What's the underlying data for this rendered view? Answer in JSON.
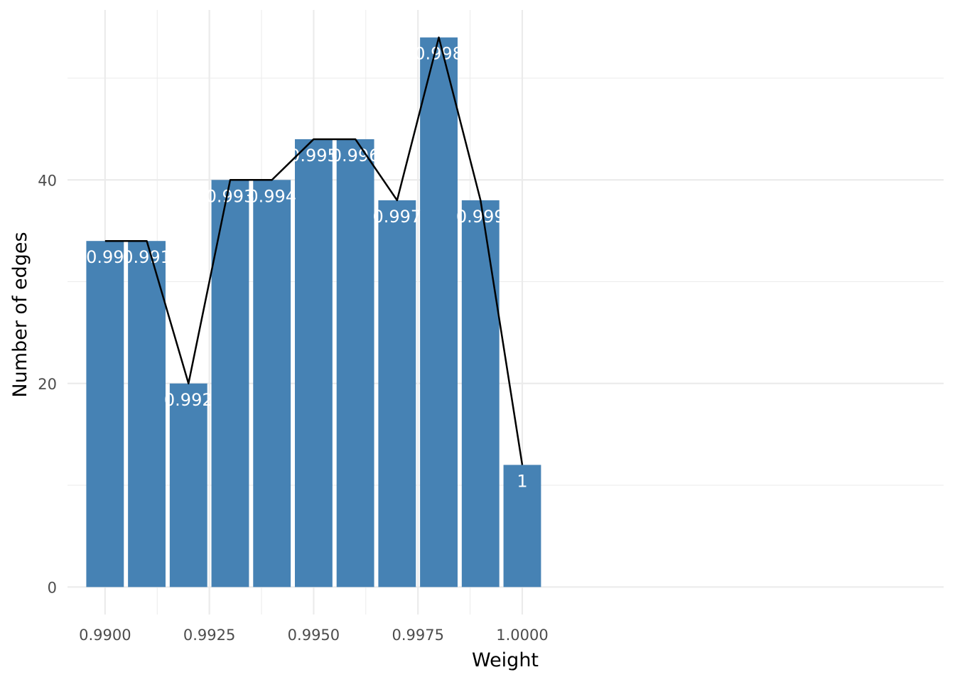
{
  "chart_data": {
    "type": "bar",
    "x": [
      0.99,
      0.991,
      0.992,
      0.993,
      0.994,
      0.995,
      0.996,
      0.997,
      0.998,
      0.999,
      1.0
    ],
    "values": [
      34,
      34,
      20,
      40,
      40,
      44,
      44,
      38,
      54,
      38,
      12
    ],
    "bar_labels": [
      "0.99",
      "0.991",
      "0.992",
      "0.993",
      "0.994",
      "0.995",
      "0.996",
      "0.997",
      "0.998",
      "0.999",
      "1"
    ],
    "line_overlay": true,
    "xlabel": "Weight",
    "ylabel": "Number of edges",
    "x_ticks": [
      0.99,
      0.9925,
      0.995,
      0.9975,
      1.0
    ],
    "x_tick_labels": [
      "0.9900",
      "0.9925",
      "0.9950",
      "0.9975",
      "1.0000"
    ],
    "y_ticks": [
      0,
      20,
      40
    ],
    "y_tick_labels": [
      "0",
      "20",
      "40"
    ],
    "xlim": [
      0.9891,
      1.0101
    ],
    "ylim": [
      -2.7,
      56.7
    ],
    "grid": true,
    "bar_color": "#4682b4",
    "line_color": "#000000",
    "label_color": "#ffffff"
  }
}
